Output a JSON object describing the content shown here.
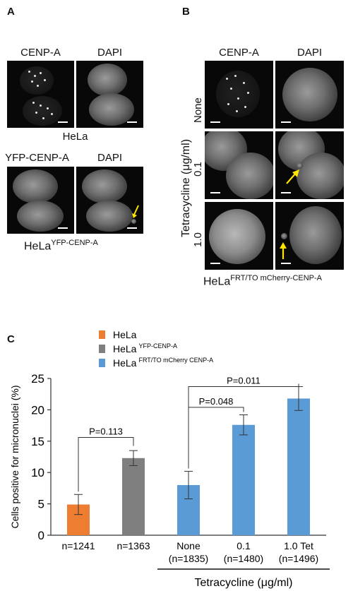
{
  "panel_a": {
    "letter": "A",
    "row1_labels": [
      "CENP-A",
      "DAPI"
    ],
    "row1_caption": "HeLa",
    "row2_labels": [
      "YFP-CENP-A",
      "DAPI"
    ],
    "row2_caption_main": "HeLa",
    "row2_caption_sup": "YFP-CENP-A"
  },
  "panel_b": {
    "letter": "B",
    "col_labels": [
      "CENP-A",
      "DAPI"
    ],
    "row_labels": [
      "None",
      "0.1",
      "1.0"
    ],
    "axis_label": "Tetracycline (μg/ml)",
    "caption_main": "HeLa",
    "caption_sup": "FRT/TO mCherry-CENP-A"
  },
  "panel_c": {
    "letter": "C",
    "chart_data": {
      "type": "bar",
      "ylabel": "Cells positive for micronuclei (%)",
      "ylim": [
        0,
        25
      ],
      "yticks": [
        0,
        5,
        10,
        15,
        20,
        25
      ],
      "xlabel": "Tetracycline (μg/ml)",
      "categories": [
        "n=1241",
        "n=1363",
        "None\n(n=1835)",
        "0.1\n(n=1480)",
        "1.0 Tet\n(n=1496)"
      ],
      "category_lines": [
        [
          "n=1241"
        ],
        [
          "n=1363"
        ],
        [
          "None",
          "(n=1835)"
        ],
        [
          "0.1",
          "(n=1480)"
        ],
        [
          "1.0 Tet",
          "(n=1496)"
        ]
      ],
      "values": [
        4.9,
        12.3,
        8.0,
        17.6,
        21.8
      ],
      "errors": [
        1.6,
        1.2,
        2.2,
        1.6,
        1.9
      ],
      "bar_colors": [
        "#ED7D31",
        "#7F7F7F",
        "#5B9BD5",
        "#5B9BD5",
        "#5B9BD5"
      ],
      "legend": [
        {
          "main": "HeLa",
          "sup": "",
          "color": "#ED7D31"
        },
        {
          "main": "HeLa",
          "sup": "YFP-CENP-A",
          "color": "#7F7F7F"
        },
        {
          "main": "HeLa",
          "sup": "FRT/TO mCherry CENP-A",
          "color": "#5B9BD5"
        }
      ],
      "comparisons": [
        {
          "from": 0,
          "to": 1,
          "label": "P=0.113"
        },
        {
          "from": 2,
          "to": 3,
          "label": "P=0.048"
        },
        {
          "from": 2,
          "to": 4,
          "label": "P=0.011"
        }
      ],
      "legend_position": "top-left"
    }
  }
}
